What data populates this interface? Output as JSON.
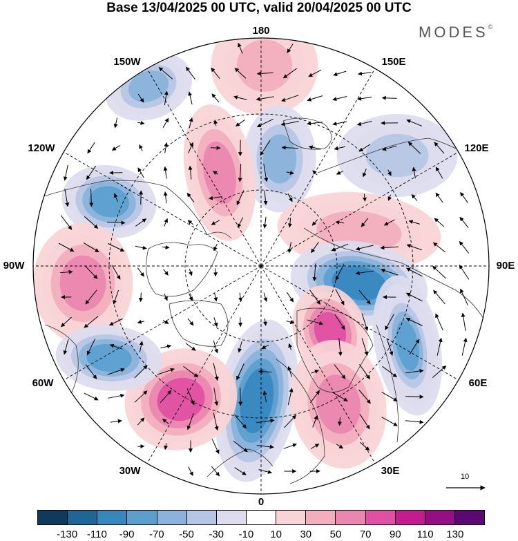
{
  "title": "Base 13/04/2025 00 UTC, valid 20/04/2025 00 UTC",
  "brand": "MODES",
  "brand_mark": "©",
  "longitude_labels": {
    "lon_180": "180",
    "lon_150w": "150W",
    "lon_150e": "150E",
    "lon_120w": "120W",
    "lon_120e": "120E",
    "lon_90w": "90W",
    "lon_90e": "90E",
    "lon_60w": "60W",
    "lon_60e": "60E",
    "lon_30w": "30W",
    "lon_30e": "30E",
    "lon_0": "0"
  },
  "reference_vector": {
    "label": "10"
  },
  "colorbar": {
    "labels": [
      "-130",
      "-110",
      "-90",
      "-70",
      "-50",
      "-30",
      "-10",
      "10",
      "30",
      "50",
      "70",
      "90",
      "110",
      "130"
    ],
    "colors": [
      "#0d3b5e",
      "#1d6796",
      "#3787bf",
      "#5b9fcf",
      "#89b3da",
      "#b5c6e4",
      "#dcdcee",
      "#ffffff",
      "#f8d4d6",
      "#f2aebd",
      "#ec85b0",
      "#df4fa2",
      "#c41c8e",
      "#960e86",
      "#5b0875"
    ]
  },
  "map": {
    "projection": "north polar stereographic",
    "field_units_note": "",
    "anomaly_centers": [
      {
        "name": "pacific-180",
        "sign": "positive",
        "level": 50
      },
      {
        "name": "gulf-alaska",
        "sign": "negative",
        "level": -70
      },
      {
        "name": "chukchi",
        "sign": "negative",
        "level": -70
      },
      {
        "name": "arctic-canada",
        "sign": "positive",
        "level": 70
      },
      {
        "name": "hudson-west",
        "sign": "negative",
        "level": -90
      },
      {
        "name": "labrador",
        "sign": "positive",
        "level": 70
      },
      {
        "name": "central-siberia",
        "sign": "positive",
        "level": 50
      },
      {
        "name": "ural",
        "sign": "negative",
        "level": -110
      },
      {
        "name": "barents-scandinavia",
        "sign": "positive",
        "level": 90
      },
      {
        "name": "west-siberia",
        "sign": "negative",
        "level": -90
      },
      {
        "name": "north-atlantic-east",
        "sign": "negative",
        "level": -110
      },
      {
        "name": "europe",
        "sign": "positive",
        "level": 70
      },
      {
        "name": "north-atlantic-west",
        "sign": "positive",
        "level": 90
      },
      {
        "name": "newfoundland-south",
        "sign": "negative",
        "level": -90
      },
      {
        "name": "east-asia",
        "sign": "negative",
        "level": -50
      }
    ]
  }
}
